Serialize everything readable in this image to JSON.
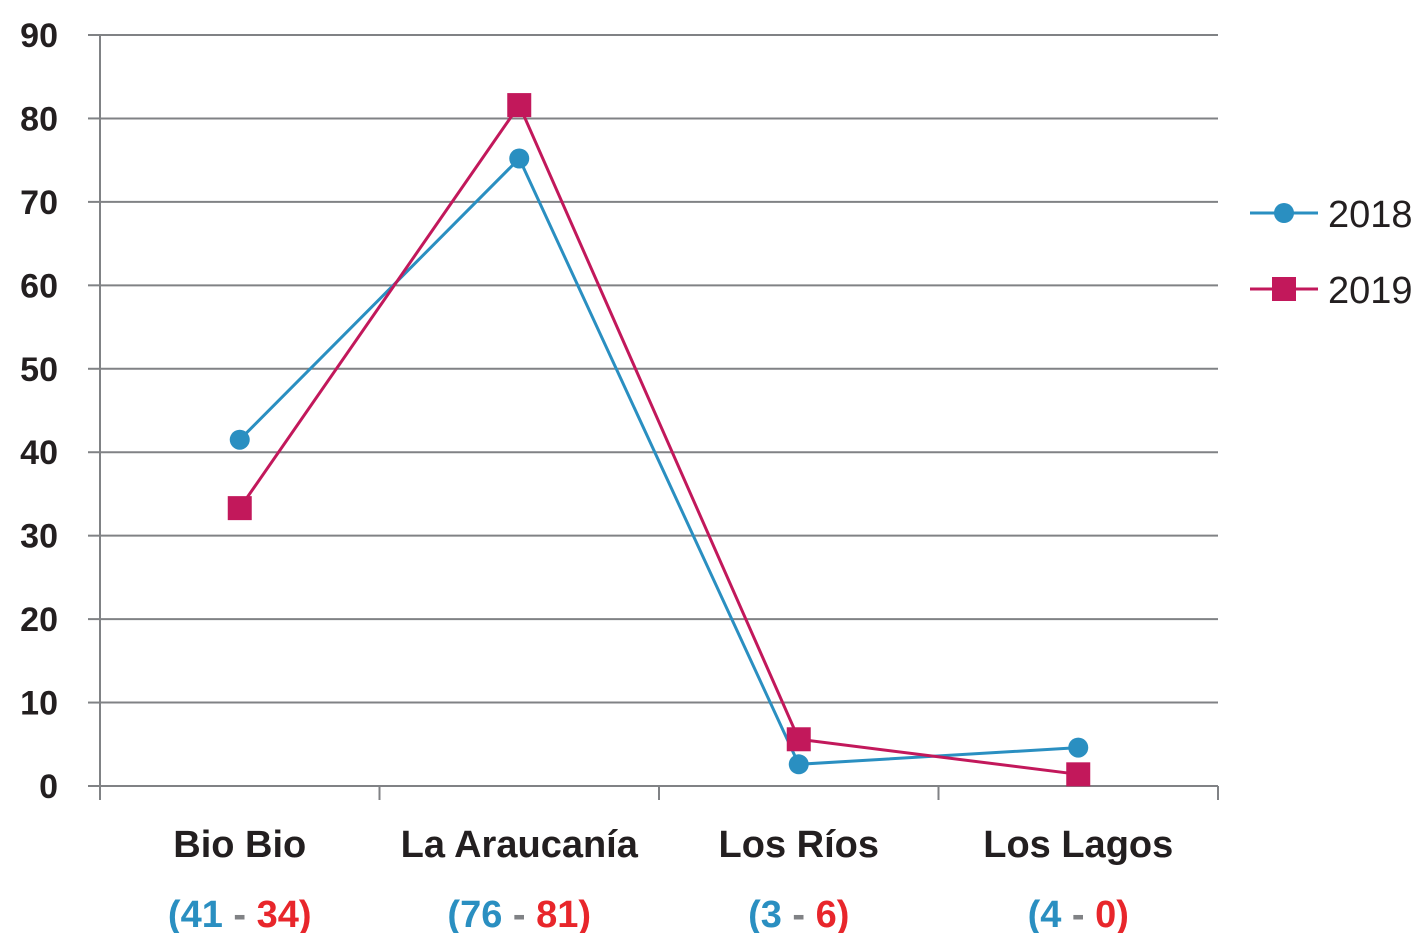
{
  "chart_data": {
    "type": "line",
    "categories": [
      "Bio Bio",
      "La Araucanía",
      "Los Ríos",
      "Los Lagos"
    ],
    "series": [
      {
        "name": "2018",
        "values": [
          41.5,
          75.2,
          2.6,
          4.6
        ],
        "color": "#2a8fc1",
        "marker": "circle"
      },
      {
        "name": "2019",
        "values": [
          33.3,
          81.6,
          5.6,
          1.4
        ],
        "color": "#c2185b",
        "marker": "square"
      }
    ],
    "category_counts": [
      {
        "open": "(",
        "first": "41",
        "sep": "-",
        "second": "34",
        "close": ")"
      },
      {
        "open": "(",
        "first": "76",
        "sep": "-",
        "second": "81",
        "close": ")"
      },
      {
        "open": "(",
        "first": "3",
        "sep": "-",
        "second": "6",
        "close": ")"
      },
      {
        "open": "(",
        "first": "4",
        "sep": "-",
        "second": "0",
        "close": ")"
      }
    ],
    "count_colors": {
      "first": "#2a8fc1",
      "second": "#e8262b",
      "sep": "#808285"
    },
    "yticks": [
      "0",
      "10",
      "20",
      "30",
      "40",
      "50",
      "60",
      "70",
      "80",
      "90"
    ],
    "ylim": [
      0,
      90
    ],
    "grid": true,
    "legend_position": "right",
    "title": "",
    "xlabel": "",
    "ylabel": ""
  }
}
